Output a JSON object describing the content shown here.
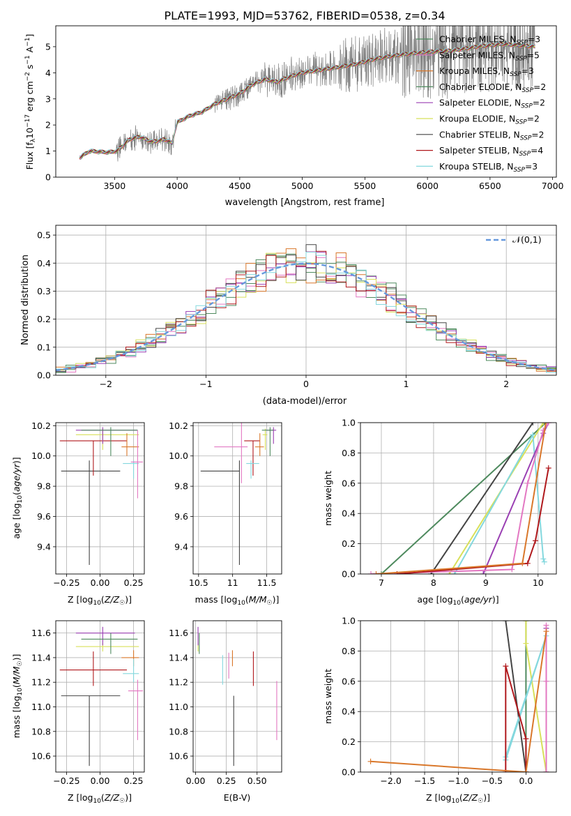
{
  "title": "PLATE=1993, MJD=53762, FIBERID=0538, z=0.34",
  "chart_data": [
    {
      "id": "spectrum",
      "type": "line",
      "title": "PLATE=1993, MJD=53762, FIBERID=0538, z=0.34",
      "xlabel": "wavelength [Angstrom, rest frame]",
      "ylabel": "Flux [f_λ 10^-17 erg cm^-2 s^-1 A^-1]",
      "xlim": [
        3030,
        7030
      ],
      "ylim": [
        0,
        5.8
      ],
      "xticks": [
        3500,
        4000,
        4500,
        5000,
        5500,
        6000,
        6500,
        7000
      ],
      "yticks": [
        0,
        1,
        2,
        3,
        4,
        5
      ],
      "grid": false,
      "legend_position": "right",
      "data_range": [
        3220,
        6860
      ],
      "continuum": {
        "x": [
          3220,
          3300,
          3450,
          3520,
          3620,
          3700,
          3800,
          3900,
          3960,
          4000,
          4100,
          4200,
          4300,
          4400,
          4500,
          4600,
          4700,
          4800,
          4900,
          5000,
          5200,
          5400,
          5600,
          5800,
          6000,
          6200,
          6400,
          6600,
          6860
        ],
        "y": [
          0.75,
          1.0,
          0.95,
          1.0,
          1.45,
          1.55,
          1.35,
          1.45,
          1.3,
          2.1,
          2.35,
          2.5,
          2.8,
          3.0,
          3.2,
          3.55,
          3.75,
          3.65,
          3.85,
          4.0,
          4.15,
          4.3,
          4.55,
          4.7,
          4.8,
          4.85,
          5.0,
          5.1,
          5.0
        ]
      },
      "series": [
        {
          "name": "Chabrier MILES, N_SSP=3",
          "color": "#4e8a5e"
        },
        {
          "name": "Salpeter MILES, N_SSP=5",
          "color": "#e377c2"
        },
        {
          "name": "Kroupa MILES, N_SSP=3",
          "color": "#d9772a"
        },
        {
          "name": "Chabrier ELODIE, N_SSP=2",
          "color": "#4e8a5e"
        },
        {
          "name": "Salpeter ELODIE, N_SSP=2",
          "color": "#9a3fb3"
        },
        {
          "name": "Kroupa ELODIE, N_SSP=2",
          "color": "#d8e05a"
        },
        {
          "name": "Chabrier STELIB, N_SSP=2",
          "color": "#444444"
        },
        {
          "name": "Salpeter STELIB, N_SSP=4",
          "color": "#b0181c"
        },
        {
          "name": "Kroupa STELIB, N_SSP=3",
          "color": "#84d8de"
        }
      ],
      "legend": [
        {
          "prefix": "Chabrier MILES, N",
          "sub": "SSP",
          "suffix": "=3",
          "color": "#4e8a5e"
        },
        {
          "prefix": "Salpeter MILES, N",
          "sub": "SSP",
          "suffix": "=5",
          "color": "#e377c2"
        },
        {
          "prefix": "Kroupa MILES, N",
          "sub": "SSP",
          "suffix": "=3",
          "color": "#d9772a"
        },
        {
          "prefix": "Chabrier ELODIE, N",
          "sub": "SSP",
          "suffix": "=2",
          "color": "#4e8a5e"
        },
        {
          "prefix": "Salpeter ELODIE, N",
          "sub": "SSP",
          "suffix": "=2",
          "color": "#9a3fb3"
        },
        {
          "prefix": "Kroupa ELODIE, N",
          "sub": "SSP",
          "suffix": "=2",
          "color": "#d8e05a"
        },
        {
          "prefix": "Chabrier STELIB, N",
          "sub": "SSP",
          "suffix": "=2",
          "color": "#444444"
        },
        {
          "prefix": "Salpeter STELIB, N",
          "sub": "SSP",
          "suffix": "=4",
          "color": "#b0181c"
        },
        {
          "prefix": "Kroupa STELIB, N",
          "sub": "SSP",
          "suffix": "=3",
          "color": "#84d8de"
        }
      ]
    },
    {
      "id": "residuals",
      "type": "bar",
      "xlabel": "(data-model)/error",
      "ylabel": "Normed distribution",
      "xlim": [
        -2.5,
        2.5
      ],
      "ylim": [
        0,
        0.535
      ],
      "xticks": [
        -2,
        -1,
        0,
        1,
        2
      ],
      "yticks": [
        0.0,
        0.1,
        0.2,
        0.3,
        0.4,
        0.5
      ],
      "grid": true,
      "legend_position": "top-right",
      "legend": "𝒩(0,1)",
      "bins": {
        "start": -2.5,
        "width": 0.1,
        "count": 50
      },
      "reference": {
        "name": "𝒩(0,1)",
        "color": "#6699dd"
      }
    },
    {
      "id": "age-vs-Z",
      "type": "scatter",
      "xlabel": "Z [log10(Z/Z☉)]",
      "ylabel": "age [log10(age/yr)]",
      "xlim": [
        -0.33,
        0.33
      ],
      "ylim": [
        9.22,
        10.22
      ],
      "xticks": [
        -0.25,
        0.0,
        0.25
      ],
      "xtick_labels": [
        "−0.25",
        "0.00",
        "0.25"
      ],
      "yticks": [
        9.4,
        9.6,
        9.8,
        10.0,
        10.2
      ],
      "grid": true,
      "points": [
        {
          "x": -0.08,
          "y": 9.9,
          "xerr": [
            0.21,
            0.23
          ],
          "yerr": [
            0.62,
            0.07
          ],
          "color": "#444444"
        },
        {
          "x": -0.05,
          "y": 10.1,
          "xerr": [
            0.25,
            0.25
          ],
          "yerr": [
            0.23,
            0.0
          ],
          "color": "#b0181c"
        },
        {
          "x": 0.02,
          "y": 10.14,
          "xerr": [
            0.2,
            0.27
          ],
          "yerr": [
            0.1,
            0.04
          ],
          "color": "#d8e05a"
        },
        {
          "x": 0.02,
          "y": 10.17,
          "xerr": [
            0.2,
            0.26
          ],
          "yerr": [
            0.09,
            0.02
          ],
          "color": "#9a3fb3"
        },
        {
          "x": 0.08,
          "y": 10.17,
          "xerr": [
            0.22,
            0.2
          ],
          "yerr": [
            0.17,
            0.02
          ],
          "color": "#4e8a5e"
        },
        {
          "x": 0.2,
          "y": 10.06,
          "xerr": [
            0.04,
            0.09
          ],
          "yerr": [
            0.06,
            0.09
          ],
          "color": "#d9772a"
        },
        {
          "x": 0.25,
          "y": 9.95,
          "xerr": [
            0.08,
            0.04
          ],
          "yerr": [
            0.1,
            0.02
          ],
          "color": "#84d8de"
        },
        {
          "x": 0.28,
          "y": 9.96,
          "xerr": [
            0.05,
            0.04
          ],
          "yerr": [
            0.24,
            0.21
          ],
          "color": "#e377c2"
        }
      ]
    },
    {
      "id": "age-vs-mass",
      "type": "scatter",
      "xlabel": "mass [log10(M/M☉)]",
      "ylabel": "",
      "xlim": [
        10.42,
        11.72
      ],
      "ylim": [
        9.22,
        10.22
      ],
      "xticks": [
        10.5,
        11.0,
        11.5
      ],
      "yticks": [
        9.4,
        9.6,
        9.8,
        10.0,
        10.2
      ],
      "grid": true,
      "points": [
        {
          "x": 11.1,
          "y": 9.9,
          "xerr": [
            0.57,
            0.0
          ],
          "yerr": [
            0.62,
            0.07
          ],
          "color": "#444444"
        },
        {
          "x": 11.3,
          "y": 10.1,
          "xerr": [
            0.13,
            0.1
          ],
          "yerr": [
            0.23,
            0.0
          ],
          "color": "#b0181c"
        },
        {
          "x": 11.48,
          "y": 10.14,
          "xerr": [
            0.04,
            0.03
          ],
          "yerr": [
            0.1,
            0.04
          ],
          "color": "#d8e05a"
        },
        {
          "x": 11.6,
          "y": 10.17,
          "xerr": [
            0.1,
            0.04
          ],
          "yerr": [
            0.09,
            0.02
          ],
          "color": "#9a3fb3"
        },
        {
          "x": 11.55,
          "y": 10.17,
          "xerr": [
            0.12,
            0.05
          ],
          "yerr": [
            0.17,
            0.02
          ],
          "color": "#4e8a5e"
        },
        {
          "x": 11.4,
          "y": 10.06,
          "xerr": [
            0.07,
            0.06
          ],
          "yerr": [
            0.06,
            0.09
          ],
          "color": "#d9772a"
        },
        {
          "x": 11.27,
          "y": 9.95,
          "xerr": [
            0.07,
            0.12
          ],
          "yerr": [
            0.1,
            0.02
          ],
          "color": "#84d8de"
        },
        {
          "x": 11.13,
          "y": 10.06,
          "xerr": [
            0.4,
            0.09
          ],
          "yerr": [
            0.24,
            0.21
          ],
          "color": "#e377c2"
        }
      ]
    },
    {
      "id": "weight-vs-age",
      "type": "line",
      "xlabel": "age [log10(age/yr)]",
      "ylabel": "mass weight",
      "xlim": [
        6.6,
        10.35
      ],
      "ylim": [
        0,
        1.0
      ],
      "xticks": [
        7,
        8,
        9,
        10
      ],
      "yticks": [
        0.0,
        0.2,
        0.4,
        0.6,
        0.8,
        1.0
      ],
      "grid": true,
      "series": [
        {
          "color": "#4e8a5e",
          "x": [
            7.0,
            10.15
          ],
          "y": [
            0.0,
            1.0
          ]
        },
        {
          "color": "#444444",
          "x": [
            7.95,
            9.9
          ],
          "y": [
            0.0,
            1.0
          ]
        },
        {
          "color": "#d8e05a",
          "x": [
            8.3,
            10.1
          ],
          "y": [
            0.0,
            1.0
          ]
        },
        {
          "color": "#84d8de",
          "x": [
            8.4,
            9.9,
            10.1,
            10.12
          ],
          "y": [
            0.0,
            0.92,
            0.1,
            0.08
          ]
        },
        {
          "color": "#9a3fb3",
          "x": [
            8.95,
            10.1,
            10.2
          ],
          "y": [
            0.0,
            0.93,
            1.0
          ]
        },
        {
          "color": "#e377c2",
          "x": [
            6.8,
            9.5,
            9.8,
            10.1,
            10.2
          ],
          "y": [
            0.0,
            0.03,
            0.6,
            0.95,
            1.0
          ]
        },
        {
          "color": "#b0181c",
          "x": [
            7.3,
            9.8,
            9.95,
            10.2
          ],
          "y": [
            0.0,
            0.07,
            0.22,
            0.7
          ]
        },
        {
          "color": "#d9772a",
          "x": [
            6.9,
            9.7,
            10.15
          ],
          "y": [
            0.0,
            0.07,
            1.0
          ]
        }
      ]
    },
    {
      "id": "mass-vs-Z",
      "type": "scatter",
      "xlabel": "Z [log10(Z/Z☉)]",
      "ylabel": "mass [log10(M/M☉)]",
      "xlim": [
        -0.33,
        0.33
      ],
      "ylim": [
        10.47,
        11.7
      ],
      "xticks": [
        -0.25,
        0.0,
        0.25
      ],
      "xtick_labels": [
        "−0.25",
        "0.00",
        "0.25"
      ],
      "yticks": [
        10.6,
        10.8,
        11.0,
        11.2,
        11.4,
        11.6
      ],
      "grid": true,
      "points": [
        {
          "x": -0.08,
          "y": 11.09,
          "xerr": [
            0.21,
            0.23
          ],
          "yerr": [
            0.57,
            0.0
          ],
          "color": "#444444"
        },
        {
          "x": -0.05,
          "y": 11.3,
          "xerr": [
            0.25,
            0.25
          ],
          "yerr": [
            0.13,
            0.15
          ],
          "color": "#b0181c"
        },
        {
          "x": 0.02,
          "y": 11.49,
          "xerr": [
            0.2,
            0.27
          ],
          "yerr": [
            0.04,
            0.03
          ],
          "color": "#d8e05a"
        },
        {
          "x": 0.02,
          "y": 11.6,
          "xerr": [
            0.2,
            0.24
          ],
          "yerr": [
            0.1,
            0.05
          ],
          "color": "#9a3fb3"
        },
        {
          "x": 0.08,
          "y": 11.55,
          "xerr": [
            0.22,
            0.2
          ],
          "yerr": [
            0.12,
            0.05
          ],
          "color": "#4e8a5e"
        },
        {
          "x": 0.25,
          "y": 11.4,
          "xerr": [
            0.09,
            0.04
          ],
          "yerr": [
            0.07,
            0.06
          ],
          "color": "#d9772a"
        },
        {
          "x": 0.25,
          "y": 11.27,
          "xerr": [
            0.08,
            0.04
          ],
          "yerr": [
            0.07,
            0.12
          ],
          "color": "#84d8de"
        },
        {
          "x": 0.28,
          "y": 11.13,
          "xerr": [
            0.07,
            0.04
          ],
          "yerr": [
            0.4,
            0.09
          ],
          "color": "#e377c2"
        }
      ]
    },
    {
      "id": "mass-vs-EBV",
      "type": "scatter",
      "xlabel": "E(B-V)",
      "ylabel": "",
      "xlim": [
        -0.02,
        0.7
      ],
      "ylim": [
        10.47,
        11.7
      ],
      "xticks": [
        0.0,
        0.25,
        0.5
      ],
      "xtick_labels": [
        "0.00",
        "0.25",
        "0.50"
      ],
      "yticks": [
        10.6,
        10.8,
        11.0,
        11.2,
        11.4,
        11.6
      ],
      "grid": true,
      "points": [
        {
          "x": 0.31,
          "y": 11.09,
          "yerr": [
            0.57,
            0.0
          ],
          "color": "#444444"
        },
        {
          "x": 0.47,
          "y": 11.3,
          "yerr": [
            0.13,
            0.15
          ],
          "color": "#b0181c"
        },
        {
          "x": 0.02,
          "y": 11.49,
          "yerr": [
            0.04,
            0.03
          ],
          "color": "#d8e05a"
        },
        {
          "x": 0.02,
          "y": 11.6,
          "yerr": [
            0.1,
            0.05
          ],
          "color": "#9a3fb3"
        },
        {
          "x": 0.03,
          "y": 11.55,
          "yerr": [
            0.12,
            0.05
          ],
          "color": "#4e8a5e"
        },
        {
          "x": 0.3,
          "y": 11.4,
          "yerr": [
            0.07,
            0.06
          ],
          "color": "#d9772a"
        },
        {
          "x": 0.22,
          "y": 11.3,
          "yerr": [
            0.12,
            0.12
          ],
          "color": "#84d8de"
        },
        {
          "x": 0.27,
          "y": 11.35,
          "yerr": [
            0.12,
            0.09
          ],
          "color": "#e377c2"
        },
        {
          "x": 0.66,
          "y": 10.97,
          "yerr": [
            0.24,
            0.24
          ],
          "color": "#e377c2"
        }
      ]
    },
    {
      "id": "weight-vs-Z",
      "type": "line",
      "xlabel": "Z [log10(Z/Z☉)]",
      "ylabel": "mass weight",
      "xlim": [
        -2.45,
        0.45
      ],
      "ylim": [
        0,
        1.0
      ],
      "xticks": [
        -2.0,
        -1.5,
        -1.0,
        -0.5,
        0.0
      ],
      "xtick_labels": [
        "−2.0",
        "−1.5",
        "−1.0",
        "−0.5",
        "0.0"
      ],
      "yticks": [
        0.0,
        0.2,
        0.4,
        0.6,
        0.8,
        1.0
      ],
      "grid": true,
      "series": [
        {
          "color": "#4e8a5e",
          "x": [
            0.0,
            0.0
          ],
          "y": [
            0.0,
            1.0
          ]
        },
        {
          "color": "#444444",
          "x": [
            0.0,
            -0.3
          ],
          "y": [
            0.0,
            1.0
          ]
        },
        {
          "color": "#d8e05a",
          "x": [
            0.0,
            0.0,
            0.3
          ],
          "y": [
            1.0,
            0.85,
            0.0
          ]
        },
        {
          "color": "#84d8de",
          "x": [
            -0.3,
            0.3,
            -0.3
          ],
          "y": [
            0.1,
            0.9,
            0.08
          ]
        },
        {
          "color": "#9a3fb3",
          "x": [
            0.3,
            0.3
          ],
          "y": [
            0.0,
            0.95
          ]
        },
        {
          "color": "#e377c2",
          "x": [
            0.3,
            0.3,
            0.3
          ],
          "y": [
            0.0,
            0.6,
            0.97
          ]
        },
        {
          "color": "#b0181c",
          "x": [
            -0.3,
            -0.3,
            0.0,
            0.0
          ],
          "y": [
            0.0,
            0.7,
            0.22,
            0.0
          ]
        },
        {
          "color": "#d9772a",
          "x": [
            -2.3,
            0.0,
            0.3
          ],
          "y": [
            0.07,
            0.0,
            0.93
          ]
        }
      ]
    }
  ]
}
